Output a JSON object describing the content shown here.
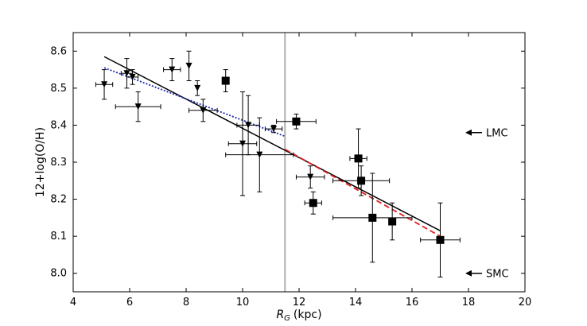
{
  "chart_data": {
    "type": "scatter",
    "title": "",
    "xlabel_symbol": "R",
    "xlabel_subscript": "G",
    "xlabel_unit": "(kpc)",
    "ylabel": "12+log(O/H)",
    "xlim": [
      4,
      20
    ],
    "ylim": [
      7.95,
      8.65
    ],
    "xticks": [
      "4",
      "6",
      "8",
      "10",
      "12",
      "14",
      "16",
      "18",
      "20"
    ],
    "yticks": [
      "8.0",
      "8.1",
      "8.2",
      "8.3",
      "8.4",
      "8.5",
      "8.6"
    ],
    "grid": false,
    "series": [
      {
        "marker": "triangle-down",
        "points": [
          {
            "x": 5.1,
            "y": 8.51,
            "xerr": 0.3,
            "yerr": 0.04
          },
          {
            "x": 5.9,
            "y": 8.54,
            "xerr": 0.2,
            "yerr": 0.04
          },
          {
            "x": 6.1,
            "y": 8.53,
            "xerr": 0.2,
            "yerr": 0.02
          },
          {
            "x": 6.3,
            "y": 8.45,
            "xerr": 0.8,
            "yerr": 0.04
          },
          {
            "x": 7.5,
            "y": 8.55,
            "xerr": 0.3,
            "yerr": 0.03
          },
          {
            "x": 8.1,
            "y": 8.56,
            "xerr": 0.0,
            "yerr": 0.04
          },
          {
            "x": 8.4,
            "y": 8.5,
            "xerr": 0.0,
            "yerr": 0.02
          },
          {
            "x": 8.6,
            "y": 8.44,
            "xerr": 0.5,
            "yerr": 0.03
          },
          {
            "x": 10.0,
            "y": 8.35,
            "xerr": 0.5,
            "yerr": 0.14
          },
          {
            "x": 10.2,
            "y": 8.4,
            "xerr": 0.4,
            "yerr": 0.08
          },
          {
            "x": 10.6,
            "y": 8.32,
            "xerr": 1.2,
            "yerr": 0.1
          },
          {
            "x": 11.1,
            "y": 8.39,
            "xerr": 0.3,
            "yerr": 0.01
          },
          {
            "x": 12.4,
            "y": 8.26,
            "xerr": 0.5,
            "yerr": 0.03
          }
        ]
      },
      {
        "marker": "square",
        "points": [
          {
            "x": 9.4,
            "y": 8.52,
            "xerr": 0.0,
            "yerr": 0.03
          },
          {
            "x": 11.9,
            "y": 8.41,
            "xerr": 0.7,
            "yerr": 0.02
          },
          {
            "x": 12.5,
            "y": 8.19,
            "xerr": 0.3,
            "yerr": 0.03
          },
          {
            "x": 14.1,
            "y": 8.31,
            "xerr": 0.3,
            "yerr": 0.08
          },
          {
            "x": 14.2,
            "y": 8.25,
            "xerr": 1.0,
            "yerr": 0.04
          },
          {
            "x": 14.6,
            "y": 8.15,
            "xerr": 1.4,
            "yerr": 0.12
          },
          {
            "x": 15.3,
            "y": 8.14,
            "xerr": 0.0,
            "yerr": 0.05
          },
          {
            "x": 17.0,
            "y": 8.09,
            "xerr": 0.7,
            "yerr": 0.1
          }
        ]
      }
    ],
    "fits": [
      {
        "style": "solid",
        "color": "#000000",
        "x": [
          5.1,
          17.0
        ],
        "y": [
          8.585,
          8.115
        ]
      },
      {
        "style": "dotted",
        "color": "#1f2ab4",
        "x": [
          5.1,
          11.5
        ],
        "y": [
          8.555,
          8.37
        ]
      },
      {
        "style": "dashed",
        "color": "#e41a1c",
        "x": [
          11.5,
          17.0
        ],
        "y": [
          8.335,
          8.1
        ]
      }
    ],
    "vline": {
      "x": 11.5,
      "color": "#b0b0b0"
    },
    "annotations": [
      {
        "text": "LMC",
        "y": 8.38,
        "arrow": "left"
      },
      {
        "text": "SMC",
        "y": 8.0,
        "arrow": "left"
      }
    ]
  }
}
